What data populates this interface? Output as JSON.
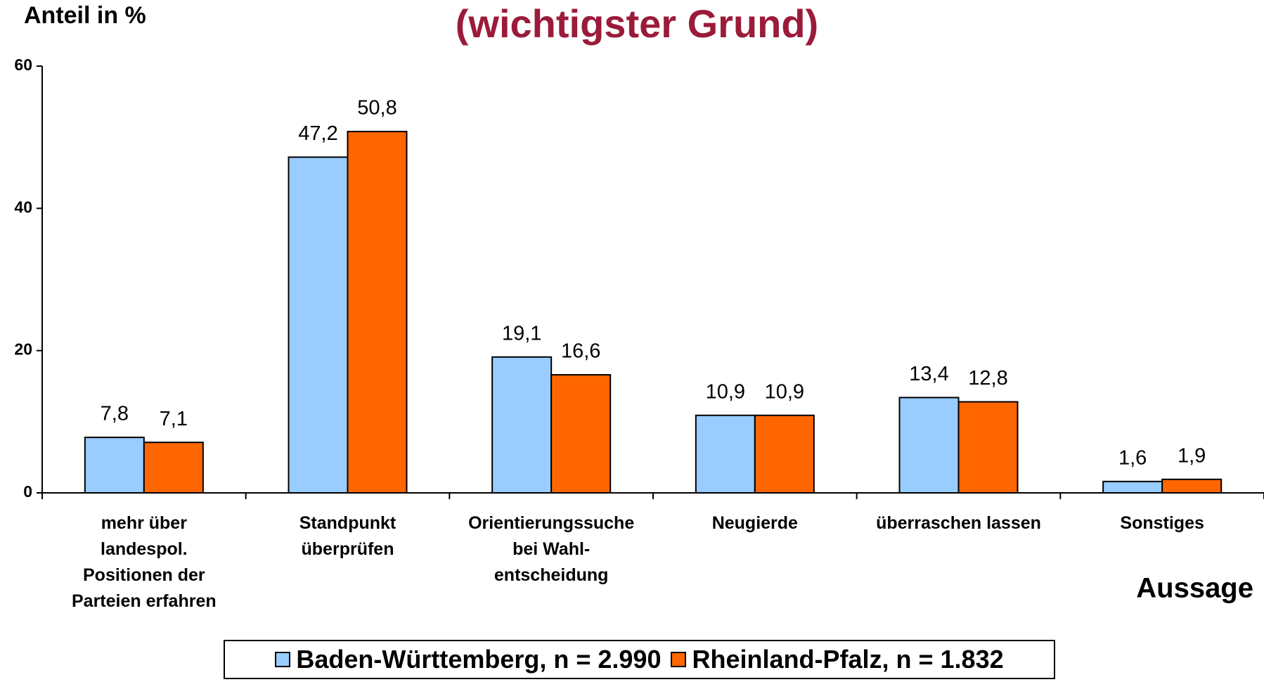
{
  "chart_data": {
    "type": "bar",
    "title": "(wichtigster Grund)",
    "y_label": "Anteil in %",
    "x_label": "Aussage",
    "categories": [
      "mehr über\nlandespol.\nPositionen der\nParteien erfahren",
      "Standpunkt\nüberprüfen",
      "Orientierungssuche\nbei Wahl-\nentscheidung",
      "Neugierde",
      "überraschen lassen",
      "Sonstiges"
    ],
    "series": [
      {
        "name": "Baden-Württemberg, n = 2.990",
        "color": "#99ccff",
        "values": [
          7.8,
          47.2,
          19.1,
          10.9,
          13.4,
          1.6
        ],
        "value_labels": [
          "7,8",
          "47,2",
          "19,1",
          "10,9",
          "13,4",
          "1,6"
        ]
      },
      {
        "name": "Rheinland-Pfalz, n = 1.832",
        "color": "#ff6600",
        "values": [
          7.1,
          50.8,
          16.6,
          10.9,
          12.8,
          1.9
        ],
        "value_labels": [
          "7,1",
          "50,8",
          "16,6",
          "10,9",
          "12,8",
          "1,9"
        ]
      }
    ],
    "ylim": [
      0,
      60
    ],
    "yticks": [
      0,
      20,
      40,
      60
    ],
    "grid": false
  }
}
